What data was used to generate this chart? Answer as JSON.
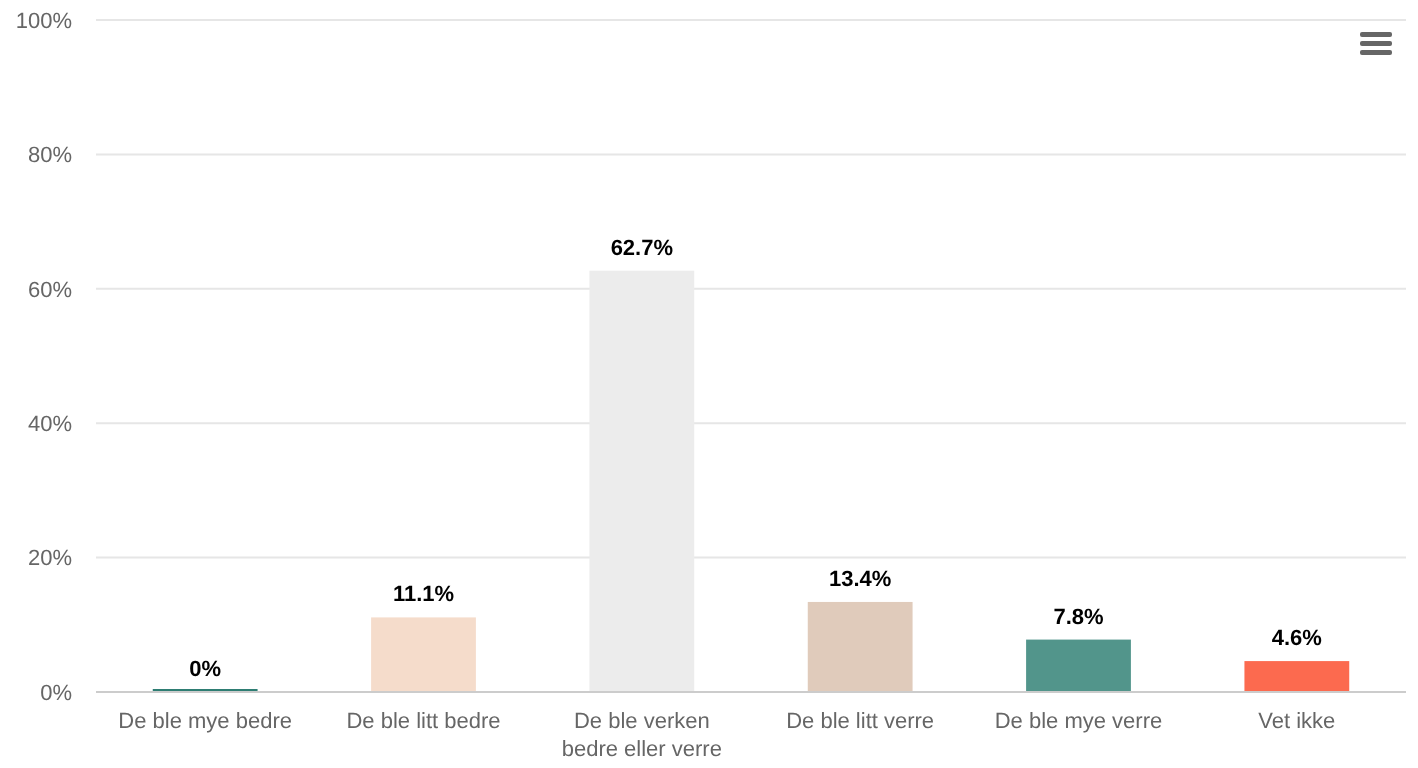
{
  "chart_data": {
    "type": "bar",
    "categories": [
      "De ble mye bedre",
      "De ble litt bedre",
      "De ble verken bedre eller verre",
      "De ble litt verre",
      "De ble mye verre",
      "Vet ikke"
    ],
    "values": [
      0,
      11.1,
      62.7,
      13.4,
      7.8,
      4.6
    ],
    "colors": [
      "#2e7d73",
      "#f5dccb",
      "#ececec",
      "#e0cbbb",
      "#52958b",
      "#fc6a4f"
    ],
    "value_labels": [
      "0%",
      "11.1%",
      "62.7%",
      "13.4%",
      "7.8%",
      "4.6%"
    ],
    "ylim": [
      0,
      100
    ],
    "yticks": [
      {
        "value": 0,
        "label": "0%"
      },
      {
        "value": 20,
        "label": "20%"
      },
      {
        "value": 40,
        "label": "40%"
      },
      {
        "value": 60,
        "label": "60%"
      },
      {
        "value": 80,
        "label": "80%"
      },
      {
        "value": 100,
        "label": "100%"
      }
    ],
    "grid": "y"
  }
}
